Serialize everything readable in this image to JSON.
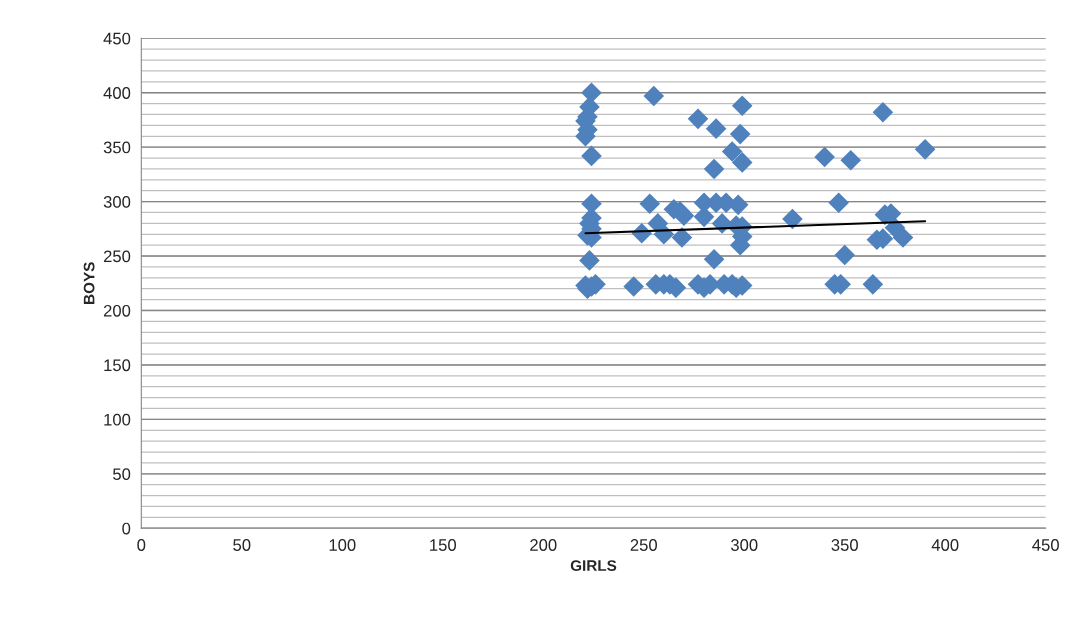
{
  "chart_data": {
    "type": "scatter",
    "xlabel": "GIRLS",
    "ylabel": "BOYS",
    "xlim": [
      0,
      450
    ],
    "ylim": [
      0,
      450
    ],
    "xticks": [
      0,
      50,
      100,
      150,
      200,
      250,
      300,
      350,
      400,
      450
    ],
    "yticks": [
      0,
      50,
      100,
      150,
      200,
      250,
      300,
      350,
      400,
      450
    ],
    "grid": "y",
    "marker": "diamond",
    "series": [
      {
        "color": "#4f81bd",
        "x": [
          224,
          223,
          222,
          221,
          222,
          221,
          224,
          224,
          224,
          223,
          224,
          222,
          224,
          223,
          221,
          224,
          222,
          226,
          255,
          277,
          286,
          299,
          298,
          285,
          294,
          299,
          253,
          257,
          260,
          265,
          268,
          270,
          269,
          249,
          280,
          280,
          286,
          289,
          291,
          297,
          296,
          299,
          299,
          298,
          285,
          324,
          245,
          256,
          260,
          263,
          266,
          277,
          280,
          283,
          290,
          294,
          296,
          299,
          340,
          353,
          369,
          390,
          347,
          350,
          345,
          348,
          364,
          366,
          369,
          370,
          373,
          375,
          379
        ],
        "values": [
          400,
          387,
          378,
          374,
          366,
          360,
          342,
          298,
          285,
          280,
          275,
          269,
          267,
          246,
          223,
          222,
          220,
          224,
          397,
          376,
          367,
          388,
          362,
          330,
          346,
          336,
          298,
          280,
          270,
          293,
          291,
          287,
          267,
          271,
          299,
          286,
          299,
          280,
          299,
          297,
          278,
          277,
          268,
          260,
          247,
          284,
          222,
          224,
          224,
          224,
          221,
          224,
          221,
          224,
          224,
          224,
          221,
          223,
          341,
          338,
          382,
          348,
          299,
          251,
          224,
          224,
          224,
          265,
          266,
          288,
          289,
          276,
          267
        ]
      },
      {
        "type": "line",
        "color": "#000000",
        "x": [
          221,
          390
        ],
        "values": [
          271,
          282
        ],
        "marker": "none"
      }
    ]
  }
}
